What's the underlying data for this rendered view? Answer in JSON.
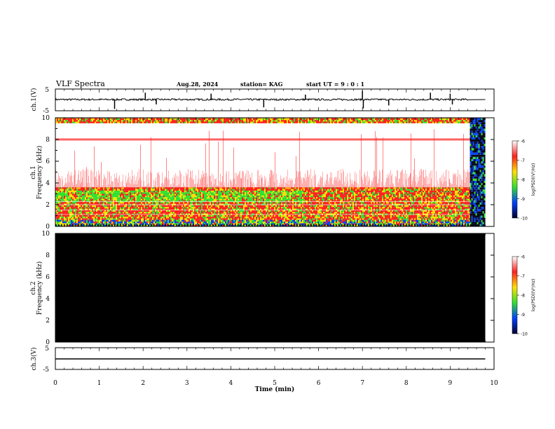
{
  "header": {
    "title": "VLF Spectra",
    "date": "Aug.28, 2024",
    "station": "station= KAG",
    "start": "start UT =  9 : 0 : 1"
  },
  "colors": {
    "trace": "#000000",
    "spectro_white": "#ffffff",
    "spectro_red": "#ff2020",
    "spectro_yellow": "#ffe000",
    "spectro_green": "#30e030",
    "spectro_blue": "#0040ff",
    "background_black": "#000000"
  },
  "chart_data": [
    {
      "type": "line",
      "name": "ch1-waveform",
      "ylabel": "ch.1(V)",
      "ylim": [
        -5,
        5
      ],
      "yticks": [
        "5",
        "-5"
      ],
      "xlim": [
        0,
        10
      ],
      "data_end_min": 9.45,
      "baseline": 0,
      "spikes": [
        {
          "x": 1.35,
          "y": -4.8
        },
        {
          "x": 2.05,
          "y": 3.5
        },
        {
          "x": 2.3,
          "y": -2.5
        },
        {
          "x": 3.55,
          "y": 3.0
        },
        {
          "x": 4.75,
          "y": -4.0
        },
        {
          "x": 5.7,
          "y": 2.5
        },
        {
          "x": 7.0,
          "y": 4.5
        },
        {
          "x": 7.02,
          "y": -4.5
        },
        {
          "x": 7.6,
          "y": -3.0
        },
        {
          "x": 8.55,
          "y": 3.5
        },
        {
          "x": 9.0,
          "y": 3.0
        },
        {
          "x": 9.05,
          "y": -2.5
        }
      ]
    },
    {
      "type": "heatmap",
      "name": "ch1-spectrogram",
      "ylabel_line1": "ch.1",
      "ylabel_line2": "Frequency (kHz)",
      "ylim": [
        0,
        10
      ],
      "yticks": [
        "0",
        "2",
        "4",
        "6",
        "8",
        "10"
      ],
      "xlim": [
        0,
        10
      ],
      "data_end_min": 9.45,
      "colorbar": {
        "label": "log(PSD)(V²/Hz)",
        "ticks": [
          "-6",
          "-7",
          "-8",
          "-9",
          "-10"
        ]
      },
      "bands": [
        {
          "fmin": 0,
          "fmax": 0.6,
          "level": "blue-green"
        },
        {
          "fmin": 0.6,
          "fmax": 3.5,
          "level": "red-yellow-green"
        },
        {
          "fmin": 3.5,
          "fmax": 5.5,
          "level": "red-sparse"
        },
        {
          "fmin": 7.8,
          "fmax": 8.1,
          "level": "red-line"
        },
        {
          "fmin": 9.5,
          "fmax": 10,
          "level": "red-yellow-green"
        }
      ]
    },
    {
      "type": "heatmap",
      "name": "ch2-spectrogram",
      "ylabel_line1": "ch.2",
      "ylabel_line2": "Frequency (kHz)",
      "ylim": [
        0,
        10
      ],
      "yticks": [
        "0",
        "2",
        "4",
        "6",
        "8",
        "10"
      ],
      "xlim": [
        0,
        10
      ],
      "data_end_min": 9.8,
      "fill": "black",
      "colorbar": {
        "label": "log(PSD)(V²/Hz)",
        "ticks": [
          "-6",
          "-7",
          "-8",
          "-9",
          "-10"
        ]
      }
    },
    {
      "type": "line",
      "name": "ch3-waveform",
      "ylabel": "ch.3(V)",
      "ylim": [
        -5,
        5
      ],
      "yticks": [
        "5",
        "-5"
      ],
      "xlim": [
        0,
        10
      ],
      "data_end_min": 9.8,
      "baseline": 0
    }
  ],
  "xaxis": {
    "label": "Time (min)",
    "ticks": [
      "0",
      "1",
      "2",
      "3",
      "4",
      "5",
      "6",
      "7",
      "8",
      "9",
      "10"
    ]
  }
}
